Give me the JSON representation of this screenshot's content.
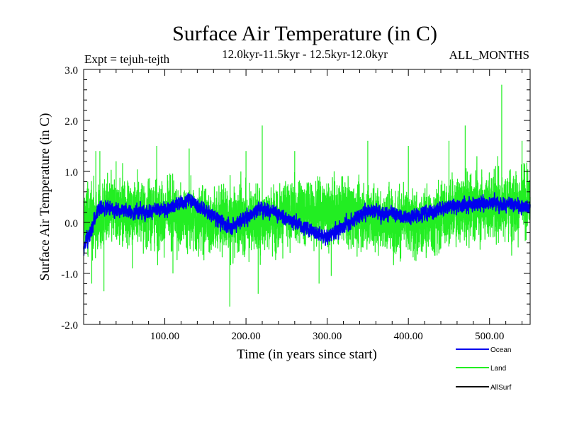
{
  "chart_data": {
    "type": "line",
    "title": "Surface Air Temperature (in C)",
    "subtitle_left": "Expt = tejuh-tejth",
    "subtitle_center": "12.0kyr-11.5kyr - 12.5kyr-12.0kyr",
    "subtitle_right": "ALL_MONTHS",
    "xlabel": "Time (in years since start)",
    "ylabel": "Surface Air Temperature (in C)",
    "xlim": [
      0,
      550
    ],
    "ylim": [
      -2.0,
      3.0
    ],
    "x_ticks": [
      {
        "value": 100,
        "label": "100.00"
      },
      {
        "value": 200,
        "label": "200.00"
      },
      {
        "value": 300,
        "label": "300.00"
      },
      {
        "value": 400,
        "label": "400.00"
      },
      {
        "value": 500,
        "label": "500.00"
      }
    ],
    "y_ticks": [
      {
        "value": -2.0,
        "label": "-2.0"
      },
      {
        "value": -1.0,
        "label": "-1.0"
      },
      {
        "value": 0.0,
        "label": "0.0"
      },
      {
        "value": 1.0,
        "label": "1.0"
      },
      {
        "value": 2.0,
        "label": "2.0"
      },
      {
        "value": 3.0,
        "label": "3.0"
      }
    ],
    "legend_position": "below-right",
    "series": [
      {
        "name": "Land",
        "color": "#22ee22",
        "approx_mean": 0.15,
        "approx_range": [
          -1.65,
          2.7
        ],
        "samples": [
          {
            "x": 0,
            "y": -0.5
          },
          {
            "x": 5,
            "y": 0.8
          },
          {
            "x": 10,
            "y": -1.2
          },
          {
            "x": 15,
            "y": 1.4
          },
          {
            "x": 20,
            "y": 1.4
          },
          {
            "x": 25,
            "y": -1.35
          },
          {
            "x": 40,
            "y": 1.2
          },
          {
            "x": 60,
            "y": -0.9
          },
          {
            "x": 90,
            "y": 1.5
          },
          {
            "x": 110,
            "y": -1.0
          },
          {
            "x": 130,
            "y": 1.45
          },
          {
            "x": 180,
            "y": -1.65
          },
          {
            "x": 200,
            "y": 1.4
          },
          {
            "x": 215,
            "y": -1.4
          },
          {
            "x": 220,
            "y": 1.9
          },
          {
            "x": 260,
            "y": 1.4
          },
          {
            "x": 290,
            "y": -1.2
          },
          {
            "x": 305,
            "y": -1.05
          },
          {
            "x": 350,
            "y": 1.6
          },
          {
            "x": 400,
            "y": 1.5
          },
          {
            "x": 450,
            "y": 1.6
          },
          {
            "x": 470,
            "y": 1.9
          },
          {
            "x": 510,
            "y": 1.3
          },
          {
            "x": 515,
            "y": 2.7
          },
          {
            "x": 540,
            "y": 1.6
          },
          {
            "x": 550,
            "y": 0.5
          }
        ]
      },
      {
        "name": "Ocean",
        "color": "#0000ee",
        "approx_mean": 0.2,
        "approx_range": [
          -0.5,
          0.65
        ],
        "samples": [
          {
            "x": 0,
            "y": -0.5
          },
          {
            "x": 20,
            "y": 0.3
          },
          {
            "x": 60,
            "y": 0.2
          },
          {
            "x": 100,
            "y": 0.25
          },
          {
            "x": 130,
            "y": 0.45
          },
          {
            "x": 180,
            "y": -0.1
          },
          {
            "x": 220,
            "y": 0.3
          },
          {
            "x": 300,
            "y": -0.3
          },
          {
            "x": 350,
            "y": 0.25
          },
          {
            "x": 400,
            "y": 0.1
          },
          {
            "x": 450,
            "y": 0.3
          },
          {
            "x": 500,
            "y": 0.4
          },
          {
            "x": 550,
            "y": 0.3
          }
        ]
      },
      {
        "name": "AllSurf",
        "color": "#000000",
        "approx_mean": 0.2,
        "samples": []
      }
    ]
  }
}
